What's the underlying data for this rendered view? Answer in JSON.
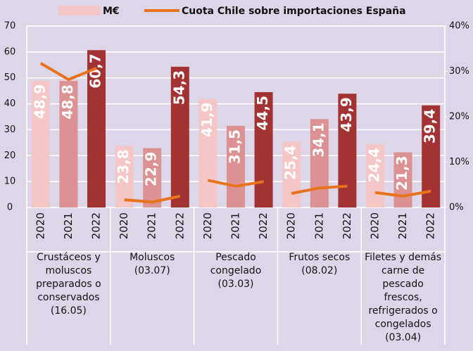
{
  "chart_data": {
    "type": "bar",
    "categories": [
      "2020",
      "2021",
      "2022",
      "2020",
      "2021",
      "2022",
      "2020",
      "2021",
      "2022",
      "2020",
      "2021",
      "2022",
      "2020",
      "2021",
      "2022"
    ],
    "groups": [
      "Crustáceos y moluscos preparados o conservados (16.05)",
      "Moluscos (03.07)",
      "Pescado congelado (03.03)",
      "Frutos secos (08.02)",
      "Filetes y demás carne de pescado frescos, refrigerados o congelados (03.04)"
    ],
    "series": [
      {
        "name": "M€",
        "color": "#f4c6c6",
        "colors": [
          "#f4c6c6",
          "#dc9292",
          "#a33232",
          "#f4c6c6",
          "#dc9292",
          "#a33232",
          "#f4c6c6",
          "#dc9292",
          "#a33232",
          "#f4c6c6",
          "#dc9292",
          "#a33232",
          "#f4c6c6",
          "#dc9292",
          "#a33232"
        ],
        "values": [
          48.9,
          48.8,
          60.7,
          23.8,
          22.9,
          54.3,
          41.9,
          31.5,
          44.5,
          25.4,
          34.1,
          43.9,
          24.4,
          21.3,
          39.4
        ],
        "value_labels": [
          "48,9",
          "48,8",
          "60,7",
          "23,8",
          "22,9",
          "54,3",
          "41,9",
          "31,5",
          "44,5",
          "25,4",
          "34,1",
          "43,9",
          "24,4",
          "21,3",
          "39,4"
        ]
      },
      {
        "name": "Cuota Chile sobre importaciones España",
        "type": "line",
        "color": "#e8731c",
        "axis": "y2",
        "values": [
          31.8,
          28.2,
          30.7,
          1.7,
          1.2,
          2.5,
          6.0,
          4.7,
          5.7,
          3.1,
          4.3,
          4.7,
          3.3,
          2.5,
          3.6
        ]
      }
    ],
    "ylim": [
      0,
      70
    ],
    "yticks": [
      0,
      10,
      20,
      30,
      40,
      50,
      60,
      70
    ],
    "y2lim": [
      0,
      40
    ],
    "y2ticks": [
      {
        "value": 0,
        "label": "0%"
      },
      {
        "value": 10,
        "label": "10%"
      },
      {
        "value": 20,
        "label": "20%"
      },
      {
        "value": 30,
        "label": "30%"
      },
      {
        "value": 40,
        "label": "40%"
      }
    ],
    "grid": true,
    "legend": "top"
  }
}
